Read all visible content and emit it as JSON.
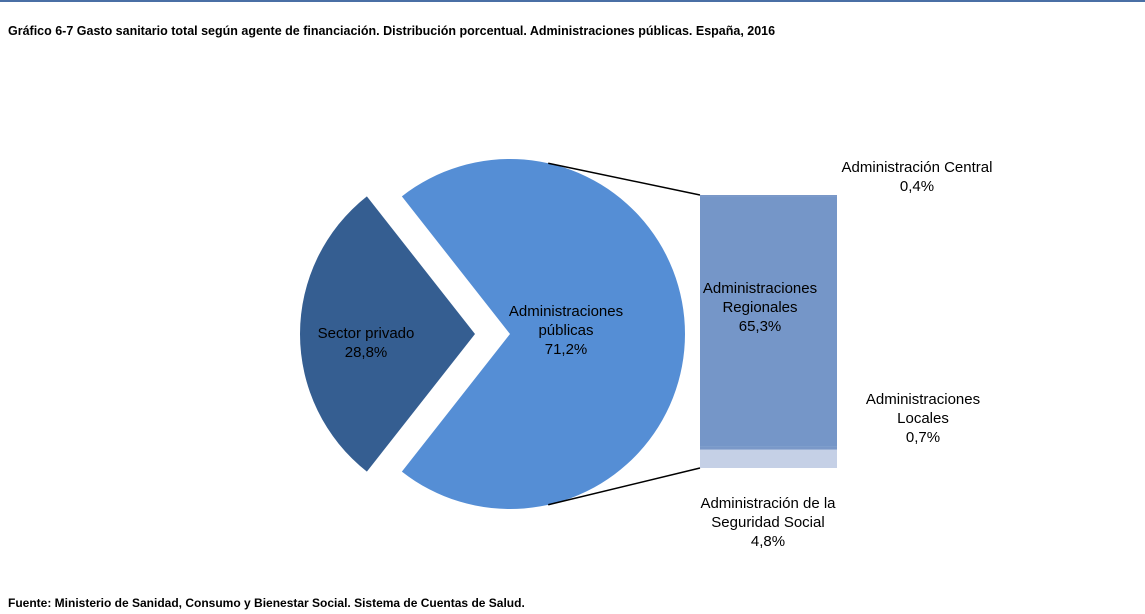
{
  "chart_data": {
    "type": "pie",
    "title": "Gráfico 6-7 Gasto sanitario total según agente de financiación. Distribución porcentual. Administraciones públicas. España, 2016",
    "categories": [
      "Sector privado",
      "Administraciones públicas"
    ],
    "values": [
      28.8,
      71.2
    ],
    "value_labels": [
      "28,8%",
      "71,2%"
    ],
    "colors": [
      "#355e91",
      "#558ed5"
    ],
    "breakdown": {
      "categories": [
        "Administración de la Seguridad Social",
        "Administraciones Locales",
        "Administraciones Regionales",
        "Administración Central"
      ],
      "values": [
        4.8,
        0.7,
        65.3,
        0.4
      ],
      "value_labels": [
        "4,8%",
        "0,7%",
        "65,3%",
        "0,4%"
      ],
      "colors": [
        "#c5d0e6",
        "#7a98c8",
        "#7596c8",
        "#7a98c8"
      ]
    },
    "source": "Fuente: Ministerio de Sanidad, Consumo y Bienestar Social. Sistema de Cuentas de Salud."
  }
}
